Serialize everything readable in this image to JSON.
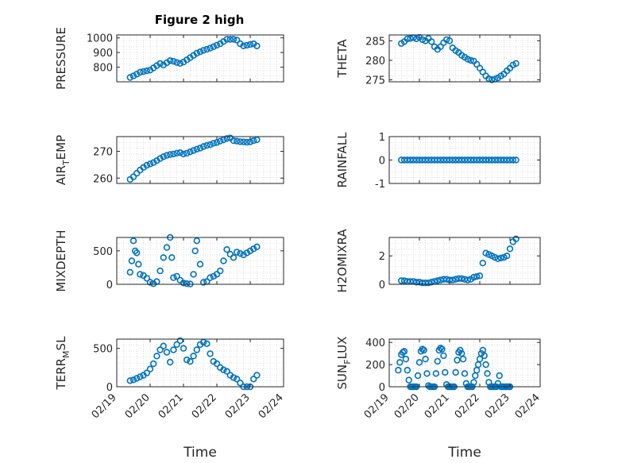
{
  "figure": {
    "title": "Figure 2 high",
    "marker_color": "#0072bd",
    "axis_color": "#262626",
    "grid_color": "#c8c8c8"
  },
  "chart_data": [
    {
      "type": "scatter",
      "ylabel": "PRESSURE",
      "title": "Figure 2 high",
      "xlim": [
        "02/19",
        "02/24"
      ],
      "ylim": [
        700,
        1020
      ],
      "yticks": [
        "800",
        "900",
        "1000"
      ],
      "xticks": [],
      "xlabel": "",
      "grid": true,
      "x": [
        0.4,
        0.5,
        0.6,
        0.7,
        0.8,
        0.9,
        1.0,
        1.1,
        1.2,
        1.3,
        1.4,
        1.5,
        1.6,
        1.7,
        1.8,
        1.9,
        2.0,
        2.1,
        2.2,
        2.3,
        2.4,
        2.5,
        2.6,
        2.7,
        2.8,
        2.9,
        3.0,
        3.1,
        3.2,
        3.3,
        3.4,
        3.5,
        3.6,
        3.7,
        3.8,
        3.9,
        4.0,
        4.1,
        4.2
      ],
      "y": [
        730,
        740,
        752,
        765,
        770,
        775,
        780,
        795,
        810,
        825,
        815,
        830,
        845,
        840,
        832,
        826,
        835,
        850,
        865,
        880,
        895,
        905,
        915,
        922,
        930,
        940,
        950,
        960,
        975,
        990,
        990,
        990,
        985,
        960,
        945,
        950,
        955,
        960,
        945
      ]
    },
    {
      "type": "scatter",
      "ylabel": "THETA",
      "xlim": [
        "02/19",
        "02/24"
      ],
      "ylim": [
        274.5,
        286.5
      ],
      "yticks": [
        "275",
        "280",
        "285"
      ],
      "xticks": [],
      "xlabel": "",
      "grid": true,
      "x": [
        0.4,
        0.5,
        0.6,
        0.7,
        0.8,
        0.9,
        1.0,
        1.1,
        1.2,
        1.3,
        1.4,
        1.5,
        1.6,
        1.7,
        1.8,
        1.9,
        2.0,
        2.1,
        2.2,
        2.3,
        2.4,
        2.5,
        2.6,
        2.7,
        2.8,
        2.9,
        3.0,
        3.1,
        3.2,
        3.3,
        3.4,
        3.5,
        3.6,
        3.7,
        3.8,
        3.9,
        4.0,
        4.1,
        4.2
      ],
      "y": [
        284.3,
        284.8,
        285.5,
        285.6,
        285.8,
        285.5,
        285.9,
        285.3,
        285.0,
        285.6,
        284.8,
        283.5,
        282.8,
        283.5,
        284.5,
        285.3,
        285.0,
        283.2,
        282.5,
        282.0,
        281.3,
        280.8,
        280.3,
        280.0,
        279.8,
        279.0,
        278.0,
        277.0,
        276.0,
        275.3,
        275.0,
        275.2,
        275.5,
        276.0,
        276.5,
        277.3,
        278.0,
        278.8,
        279.2
      ]
    },
    {
      "type": "scatter",
      "ylabel": "AIR_TEMP",
      "xlim": [
        "02/19",
        "02/24"
      ],
      "ylim": [
        258,
        275.5
      ],
      "yticks": [
        "260",
        "270"
      ],
      "xticks": [],
      "xlabel": "",
      "grid": true,
      "x": [
        0.4,
        0.5,
        0.6,
        0.7,
        0.8,
        0.9,
        1.0,
        1.1,
        1.2,
        1.3,
        1.4,
        1.5,
        1.6,
        1.7,
        1.8,
        1.9,
        2.0,
        2.1,
        2.2,
        2.3,
        2.4,
        2.5,
        2.6,
        2.7,
        2.8,
        2.9,
        3.0,
        3.1,
        3.2,
        3.3,
        3.4,
        3.5,
        3.6,
        3.7,
        3.8,
        3.9,
        4.0,
        4.1,
        4.2
      ],
      "y": [
        259.5,
        260.5,
        261.8,
        263.0,
        264.0,
        264.8,
        265.3,
        265.8,
        266.5,
        267.3,
        268.0,
        268.5,
        268.8,
        269.0,
        269.3,
        269.5,
        269.0,
        269.3,
        269.8,
        270.3,
        270.8,
        271.2,
        271.8,
        272.2,
        272.5,
        273.0,
        273.3,
        273.8,
        274.3,
        274.8,
        275.0,
        274.0,
        273.8,
        273.6,
        273.5,
        273.4,
        273.5,
        274.0,
        274.3
      ]
    },
    {
      "type": "scatter",
      "ylabel": "RAINFALL",
      "xlim": [
        "02/19",
        "02/24"
      ],
      "ylim": [
        -1,
        1
      ],
      "yticks": [
        "-1",
        "0",
        "1"
      ],
      "xticks": [],
      "xlabel": "",
      "grid": true,
      "x": [
        0.4,
        0.5,
        0.6,
        0.7,
        0.8,
        0.9,
        1.0,
        1.1,
        1.2,
        1.3,
        1.4,
        1.5,
        1.6,
        1.7,
        1.8,
        1.9,
        2.0,
        2.1,
        2.2,
        2.3,
        2.4,
        2.5,
        2.6,
        2.7,
        2.8,
        2.9,
        3.0,
        3.1,
        3.2,
        3.3,
        3.4,
        3.5,
        3.6,
        3.7,
        3.8,
        3.9,
        4.0,
        4.1,
        4.2
      ],
      "y": [
        0,
        0,
        0,
        0,
        0,
        0,
        0,
        0,
        0,
        0,
        0,
        0,
        0,
        0,
        0,
        0,
        0,
        0,
        0,
        0,
        0,
        0,
        0,
        0,
        0,
        0,
        0,
        0,
        0,
        0,
        0,
        0,
        0,
        0,
        0,
        0,
        0,
        0,
        0
      ]
    },
    {
      "type": "scatter",
      "ylabel": "MIXDEPTH",
      "xlim": [
        "02/19",
        "02/24"
      ],
      "ylim": [
        0,
        700
      ],
      "yticks": [
        "0",
        "500"
      ],
      "xticks": [],
      "xlabel": "",
      "grid": true,
      "x": [
        0.4,
        0.45,
        0.5,
        0.55,
        0.6,
        0.65,
        0.7,
        0.8,
        0.9,
        1.0,
        1.1,
        1.2,
        1.3,
        1.4,
        1.5,
        1.6,
        1.65,
        1.7,
        1.8,
        1.9,
        2.0,
        2.1,
        2.2,
        2.3,
        2.35,
        2.4,
        2.5,
        2.6,
        2.7,
        2.8,
        2.9,
        3.0,
        3.1,
        3.2,
        3.3,
        3.4,
        3.5,
        3.6,
        3.7,
        3.8,
        3.9,
        4.0,
        4.1,
        4.2
      ],
      "y": [
        180,
        350,
        650,
        500,
        470,
        300,
        150,
        130,
        90,
        30,
        10,
        40,
        200,
        400,
        550,
        700,
        400,
        100,
        120,
        60,
        20,
        10,
        5,
        150,
        500,
        650,
        300,
        30,
        40,
        100,
        120,
        150,
        200,
        350,
        520,
        450,
        400,
        480,
        460,
        440,
        470,
        500,
        530,
        560
      ]
    },
    {
      "type": "scatter",
      "ylabel": "H2OMIXRA",
      "xlim": [
        "02/19",
        "02/24"
      ],
      "ylim": [
        0,
        3.3
      ],
      "yticks": [
        "0",
        "2"
      ],
      "xticks": [],
      "xlabel": "",
      "grid": true,
      "x": [
        0.4,
        0.5,
        0.6,
        0.7,
        0.8,
        0.9,
        1.0,
        1.1,
        1.2,
        1.3,
        1.4,
        1.5,
        1.6,
        1.7,
        1.8,
        1.9,
        2.0,
        2.1,
        2.2,
        2.3,
        2.4,
        2.5,
        2.6,
        2.7,
        2.8,
        2.9,
        3.0,
        3.1,
        3.2,
        3.3,
        3.4,
        3.5,
        3.6,
        3.7,
        3.8,
        3.9,
        4.0,
        4.1,
        4.2
      ],
      "y": [
        0.25,
        0.25,
        0.2,
        0.2,
        0.2,
        0.15,
        0.15,
        0.1,
        0.1,
        0.1,
        0.15,
        0.2,
        0.25,
        0.3,
        0.35,
        0.35,
        0.3,
        0.3,
        0.35,
        0.4,
        0.4,
        0.35,
        0.3,
        0.35,
        0.5,
        0.55,
        0.6,
        1.5,
        2.2,
        2.1,
        2.0,
        1.9,
        1.8,
        1.85,
        1.9,
        2.0,
        2.5,
        3.0,
        3.2
      ]
    },
    {
      "type": "scatter",
      "ylabel": "TERR_MSL",
      "xlim": [
        "02/19",
        "02/24"
      ],
      "ylim": [
        0,
        620
      ],
      "yticks": [
        "0",
        "500"
      ],
      "xticks": [
        "02/19",
        "02/20",
        "02/21",
        "02/22",
        "02/23",
        "02/24"
      ],
      "xlabel": "Time",
      "grid": true,
      "x": [
        0.4,
        0.5,
        0.6,
        0.7,
        0.8,
        0.9,
        1.0,
        1.1,
        1.2,
        1.3,
        1.4,
        1.5,
        1.6,
        1.7,
        1.8,
        1.9,
        2.0,
        2.1,
        2.2,
        2.3,
        2.4,
        2.5,
        2.6,
        2.7,
        2.8,
        2.9,
        3.0,
        3.1,
        3.2,
        3.3,
        3.4,
        3.5,
        3.6,
        3.7,
        3.8,
        3.9,
        4.0,
        4.1,
        4.2
      ],
      "y": [
        80,
        90,
        110,
        130,
        150,
        180,
        230,
        300,
        400,
        480,
        530,
        450,
        320,
        480,
        550,
        600,
        500,
        350,
        330,
        400,
        480,
        550,
        580,
        560,
        430,
        330,
        300,
        250,
        220,
        200,
        150,
        120,
        100,
        50,
        0,
        0,
        0,
        100,
        150
      ]
    },
    {
      "type": "scatter",
      "ylabel": "SUN_FLUX",
      "xlim": [
        "02/19",
        "02/24"
      ],
      "ylim": [
        0,
        430
      ],
      "yticks": [
        "0",
        "200",
        "400"
      ],
      "xticks": [
        "02/19",
        "02/20",
        "02/21",
        "02/22",
        "02/23",
        "02/24"
      ],
      "xlabel": "Time",
      "grid": true,
      "x": [
        0.3,
        0.35,
        0.4,
        0.45,
        0.5,
        0.55,
        0.6,
        0.65,
        0.7,
        0.75,
        0.8,
        0.85,
        0.9,
        0.95,
        1.0,
        1.05,
        1.1,
        1.15,
        1.2,
        1.25,
        1.3,
        1.35,
        1.4,
        1.45,
        1.5,
        1.55,
        1.6,
        1.65,
        1.7,
        1.75,
        1.8,
        1.85,
        1.9,
        1.95,
        2.0,
        2.05,
        2.1,
        2.15,
        2.2,
        2.25,
        2.3,
        2.35,
        2.4,
        2.45,
        2.5,
        2.55,
        2.6,
        2.65,
        2.7,
        2.75,
        2.8,
        2.85,
        2.9,
        2.95,
        3.0,
        3.05,
        3.1,
        3.15,
        3.2,
        3.25,
        3.3,
        3.35,
        3.4,
        3.45,
        3.5,
        3.55,
        3.6,
        3.65,
        3.7,
        3.75,
        3.8,
        3.85,
        3.9,
        3.95,
        4.0
      ],
      "y": [
        150,
        220,
        290,
        310,
        320,
        250,
        150,
        60,
        0,
        0,
        0,
        0,
        0,
        100,
        220,
        320,
        340,
        330,
        250,
        120,
        10,
        0,
        0,
        0,
        0,
        120,
        230,
        330,
        350,
        340,
        280,
        130,
        20,
        0,
        0,
        0,
        0,
        0,
        130,
        240,
        310,
        330,
        300,
        250,
        120,
        30,
        0,
        0,
        0,
        0,
        40,
        100,
        150,
        200,
        250,
        300,
        330,
        280,
        200,
        120,
        40,
        0,
        0,
        0,
        0,
        0,
        30,
        100,
        0,
        0,
        0,
        0,
        0,
        0,
        0
      ]
    }
  ]
}
